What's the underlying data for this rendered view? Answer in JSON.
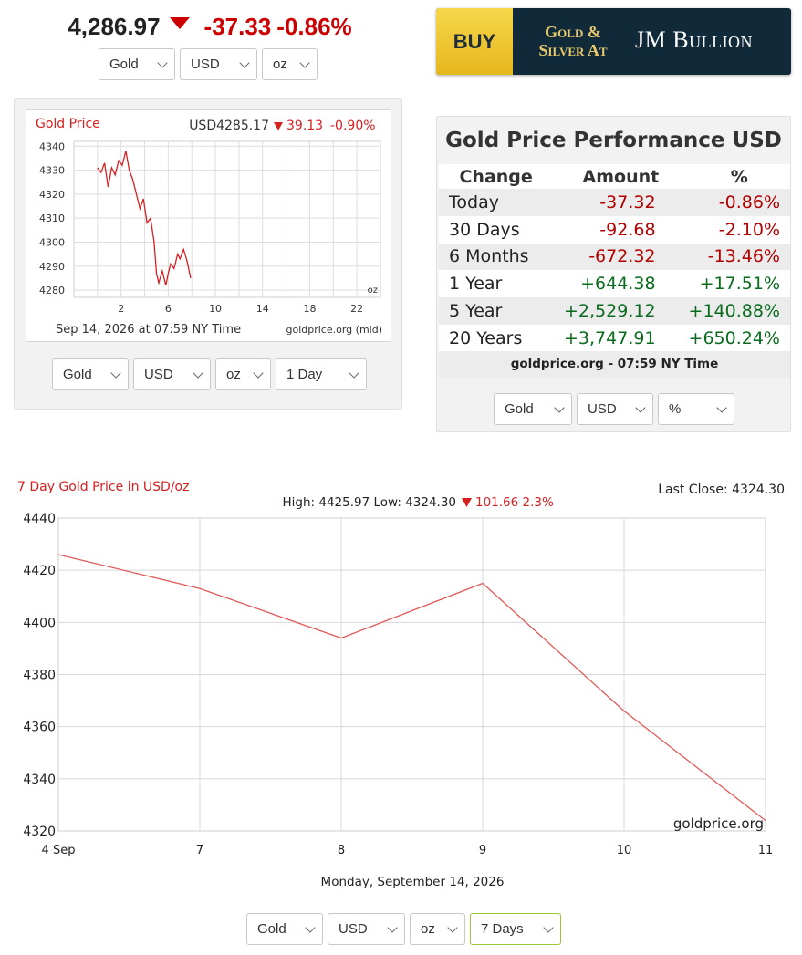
{
  "header": {
    "price": "4,286.97",
    "change": "-37.33",
    "change_pct": "-0.86%",
    "arrow_icon": "down-triangle",
    "selects": [
      "Gold",
      "USD",
      "oz"
    ]
  },
  "ad": {
    "buy_label": "BUY",
    "line1": "Gold &",
    "line2": "Silver At",
    "brand": "JM Bullion",
    "colors": {
      "buy_bg": "#f0c93a",
      "bg": "#102a3a",
      "gold_text": "#e9c86a"
    }
  },
  "small_chart": {
    "title": "Gold Price",
    "price_label": "USD4285.17",
    "change": "39.13",
    "change_pct": "-0.90%",
    "date_label": "Sep 14, 2026 at 07:59 NY Time",
    "source": "goldprice.org (mid)",
    "unit": "oz",
    "selects": [
      "Gold",
      "USD",
      "oz",
      "1 Day"
    ]
  },
  "performance": {
    "title": "Gold Price Performance USD",
    "headers": [
      "Change",
      "Amount",
      "%"
    ],
    "rows": [
      {
        "label": "Today",
        "amount": "-37.32",
        "pct": "-0.86%",
        "trend": "neg"
      },
      {
        "label": "30 Days",
        "amount": "-92.68",
        "pct": "-2.10%",
        "trend": "neg"
      },
      {
        "label": "6 Months",
        "amount": "-672.32",
        "pct": "-13.46%",
        "trend": "neg"
      },
      {
        "label": "1 Year",
        "amount": "+644.38",
        "pct": "+17.51%",
        "trend": "pos"
      },
      {
        "label": "5 Year",
        "amount": "+2,529.12",
        "pct": "+140.88%",
        "trend": "pos"
      },
      {
        "label": "20 Years",
        "amount": "+3,747.91",
        "pct": "+650.24%",
        "trend": "pos"
      }
    ],
    "footer": "goldprice.org - 07:59 NY Time",
    "selects": [
      "Gold",
      "USD",
      "%"
    ]
  },
  "big_chart_info": {
    "title": "7 Day Gold Price in USD/oz",
    "last_close": "Last Close: 4324.30",
    "high_low": "High: 4425.97 Low: 4324.30",
    "change": "101.66 2.3%",
    "date_label": "Monday, September 14, 2026",
    "watermark": "goldprice.org",
    "selects": [
      "Gold",
      "USD",
      "oz",
      "7 Days"
    ]
  },
  "chart_data": [
    {
      "type": "line",
      "title": "Gold Price",
      "x": [
        0.0,
        0.3,
        0.6,
        0.9,
        1.2,
        1.5,
        1.8,
        2.1,
        2.4,
        2.7,
        3.0,
        3.3,
        3.6,
        3.9,
        4.2,
        4.5,
        4.8,
        5.0,
        5.2,
        5.5,
        5.8,
        6.0,
        6.2,
        6.5,
        6.8,
        7.0,
        7.3,
        7.6,
        7.9
      ],
      "values": [
        4331,
        4329,
        4333,
        4323,
        4331,
        4328,
        4334,
        4332,
        4338,
        4330,
        4326,
        4320,
        4314,
        4318,
        4308,
        4310,
        4300,
        4287,
        4283,
        4288,
        4282,
        4287,
        4291,
        4289,
        4295,
        4293,
        4297,
        4292,
        4285
      ],
      "xticks": [
        2,
        6,
        10,
        14,
        18,
        22
      ],
      "yticks": [
        4280,
        4290,
        4300,
        4310,
        4320,
        4330,
        4340
      ],
      "xlim": [
        -2,
        24
      ],
      "ylim": [
        4277,
        4342
      ],
      "line_color": "#d62020",
      "grid": true
    },
    {
      "type": "line",
      "title": "7 Day Gold Price in USD/oz",
      "categories": [
        "4 Sep",
        "7",
        "8",
        "9",
        "10",
        "11"
      ],
      "values": [
        4426,
        4413,
        4394,
        4415,
        4366,
        4324
      ],
      "yticks": [
        4320,
        4340,
        4360,
        4380,
        4400,
        4420,
        4440
      ],
      "ylim": [
        4320,
        4440
      ],
      "line_color": "#e05a5a",
      "grid": true
    }
  ]
}
